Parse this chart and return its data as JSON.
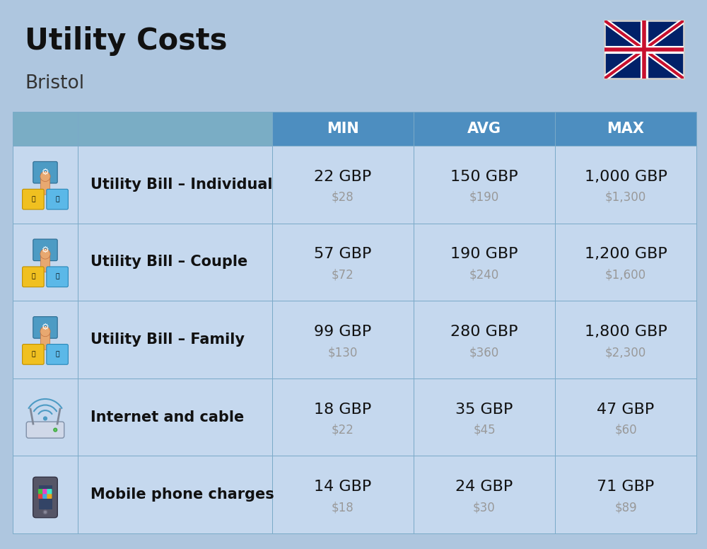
{
  "title": "Utility Costs",
  "subtitle": "Bristol",
  "background_color": "#aec6df",
  "header_color": "#4d8ec0",
  "header_text_color": "#ffffff",
  "row_color": "#c5d8ee",
  "border_color": "#7aaac8",
  "col_headers": [
    "MIN",
    "AVG",
    "MAX"
  ],
  "rows": [
    {
      "label": "Utility Bill – Individual",
      "min_gbp": "22 GBP",
      "min_usd": "$28",
      "avg_gbp": "150 GBP",
      "avg_usd": "$190",
      "max_gbp": "1,000 GBP",
      "max_usd": "$1,300",
      "icon": "utility"
    },
    {
      "label": "Utility Bill – Couple",
      "min_gbp": "57 GBP",
      "min_usd": "$72",
      "avg_gbp": "190 GBP",
      "avg_usd": "$240",
      "max_gbp": "1,200 GBP",
      "max_usd": "$1,600",
      "icon": "utility"
    },
    {
      "label": "Utility Bill – Family",
      "min_gbp": "99 GBP",
      "min_usd": "$130",
      "avg_gbp": "280 GBP",
      "avg_usd": "$360",
      "max_gbp": "1,800 GBP",
      "max_usd": "$2,300",
      "icon": "utility"
    },
    {
      "label": "Internet and cable",
      "min_gbp": "18 GBP",
      "min_usd": "$22",
      "avg_gbp": "35 GBP",
      "avg_usd": "$45",
      "max_gbp": "47 GBP",
      "max_usd": "$60",
      "icon": "internet"
    },
    {
      "label": "Mobile phone charges",
      "min_gbp": "14 GBP",
      "min_usd": "$18",
      "avg_gbp": "24 GBP",
      "avg_usd": "$30",
      "max_gbp": "71 GBP",
      "max_usd": "$89",
      "icon": "mobile"
    }
  ],
  "title_fontsize": 30,
  "subtitle_fontsize": 19,
  "header_fontsize": 15,
  "cell_gbp_fontsize": 16,
  "cell_usd_fontsize": 12,
  "label_fontsize": 15,
  "gbp_color": "#111111",
  "usd_color": "#999999",
  "label_color": "#111111"
}
